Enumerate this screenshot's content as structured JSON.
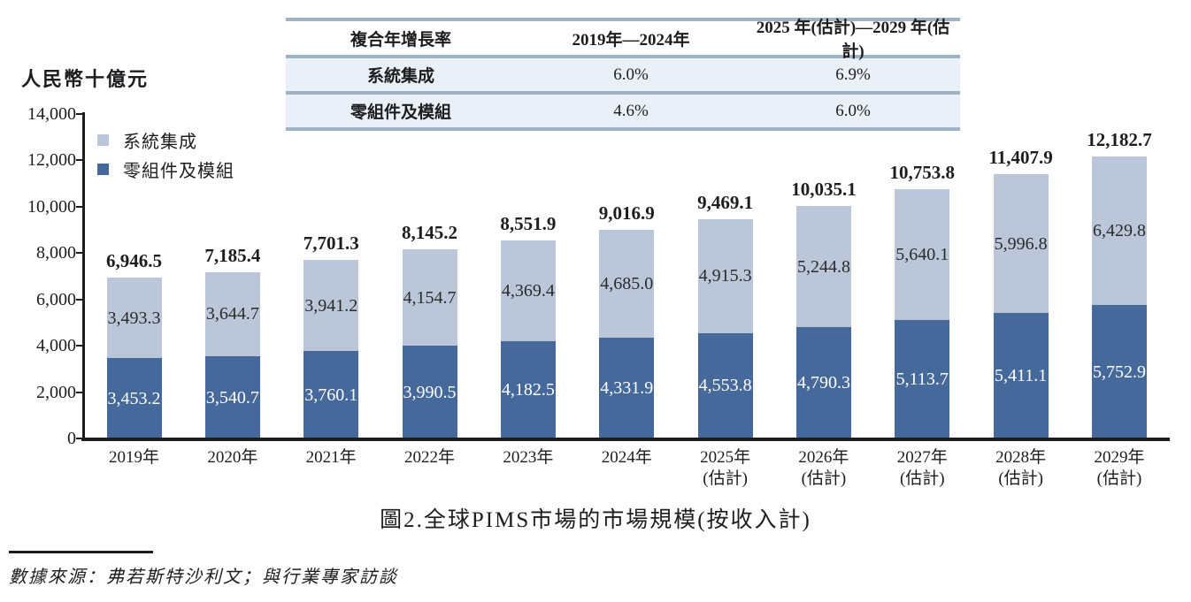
{
  "unit_label": "人民幣十億元",
  "title": "圖2.全球PIMS市場的市場規模(按收入計)",
  "source": "數據來源：弗若斯特沙利文；與行業專家訪談",
  "colors": {
    "system_integration": "#bbc7d8",
    "components_modules": "#46699b",
    "table_separator": "#9fb2c3",
    "table_row_bg": "#eaf0f7",
    "axis": "#1d1d1f"
  },
  "table": {
    "header": {
      "metric": "複合年增長率",
      "period1": "2019年—2024年",
      "period2": "2025 年(估計)—2029 年(估計)"
    },
    "rows": [
      {
        "label": "系統集成",
        "period1": "6.0%",
        "period2": "6.9%"
      },
      {
        "label": "零組件及模組",
        "period1": "4.6%",
        "period2": "6.0%"
      }
    ]
  },
  "legend": [
    {
      "label": "系統集成",
      "color": "#bbc7d8"
    },
    {
      "label": "零組件及模組",
      "color": "#46699b"
    }
  ],
  "chart_data": {
    "type": "bar",
    "stacked": true,
    "title": "圖2.全球PIMS市場的市場規模(按收入計)",
    "ylabel": "人民幣十億元",
    "ylim": [
      0,
      14000
    ],
    "ytick_values": [
      0,
      2000,
      4000,
      6000,
      8000,
      10000,
      12000,
      14000
    ],
    "ytick_labels": [
      "0",
      "2,000",
      "4,000",
      "6,000",
      "8,000",
      "10,000",
      "12,000",
      "14,000"
    ],
    "categories": [
      {
        "line1": "2019年",
        "line2": ""
      },
      {
        "line1": "2020年",
        "line2": ""
      },
      {
        "line1": "2021年",
        "line2": ""
      },
      {
        "line1": "2022年",
        "line2": ""
      },
      {
        "line1": "2023年",
        "line2": ""
      },
      {
        "line1": "2024年",
        "line2": ""
      },
      {
        "line1": "2025年",
        "line2": "(估計)"
      },
      {
        "line1": "2026年",
        "line2": "(估計)"
      },
      {
        "line1": "2027年",
        "line2": "(估計)"
      },
      {
        "line1": "2028年",
        "line2": "(估計)"
      },
      {
        "line1": "2029年",
        "line2": "(估計)"
      }
    ],
    "series": [
      {
        "name": "零組件及模組",
        "position": "bottom",
        "color": "#46699b",
        "values": [
          3453.2,
          3540.7,
          3760.1,
          3990.5,
          4182.5,
          4331.9,
          4553.8,
          4790.3,
          5113.7,
          5411.1,
          5752.9
        ],
        "labels": [
          "3,453.2",
          "3,540.7",
          "3,760.1",
          "3,990.5",
          "4,182.5",
          "4,331.9",
          "4,553.8",
          "4,790.3",
          "5,113.7",
          "5,411.1",
          "5,752.9"
        ]
      },
      {
        "name": "系統集成",
        "position": "top",
        "color": "#bbc7d8",
        "values": [
          3493.3,
          3644.7,
          3941.2,
          4154.7,
          4369.4,
          4685.0,
          4915.3,
          5244.8,
          5640.1,
          5996.8,
          6429.8
        ],
        "labels": [
          "3,493.3",
          "3,644.7",
          "3,941.2",
          "4,154.7",
          "4,369.4",
          "4,685.0",
          "4,915.3",
          "5,244.8",
          "5,640.1",
          "5,996.8",
          "6,429.8"
        ]
      }
    ],
    "totals": [
      6946.5,
      7185.4,
      7701.3,
      8145.2,
      8551.9,
      9016.9,
      9469.1,
      10035.1,
      10753.8,
      11407.9,
      12182.7
    ],
    "total_labels": [
      "6,946.5",
      "7,185.4",
      "7,701.3",
      "8,145.2",
      "8,551.9",
      "9,016.9",
      "9,469.1",
      "10,035.1",
      "10,753.8",
      "11,407.9",
      "12,182.7"
    ],
    "cagr_table": {
      "系統集成": {
        "2019-2024": "6.0%",
        "2025E-2029E": "6.9%"
      },
      "零組件及模組": {
        "2019-2024": "4.6%",
        "2025E-2029E": "6.0%"
      }
    }
  }
}
